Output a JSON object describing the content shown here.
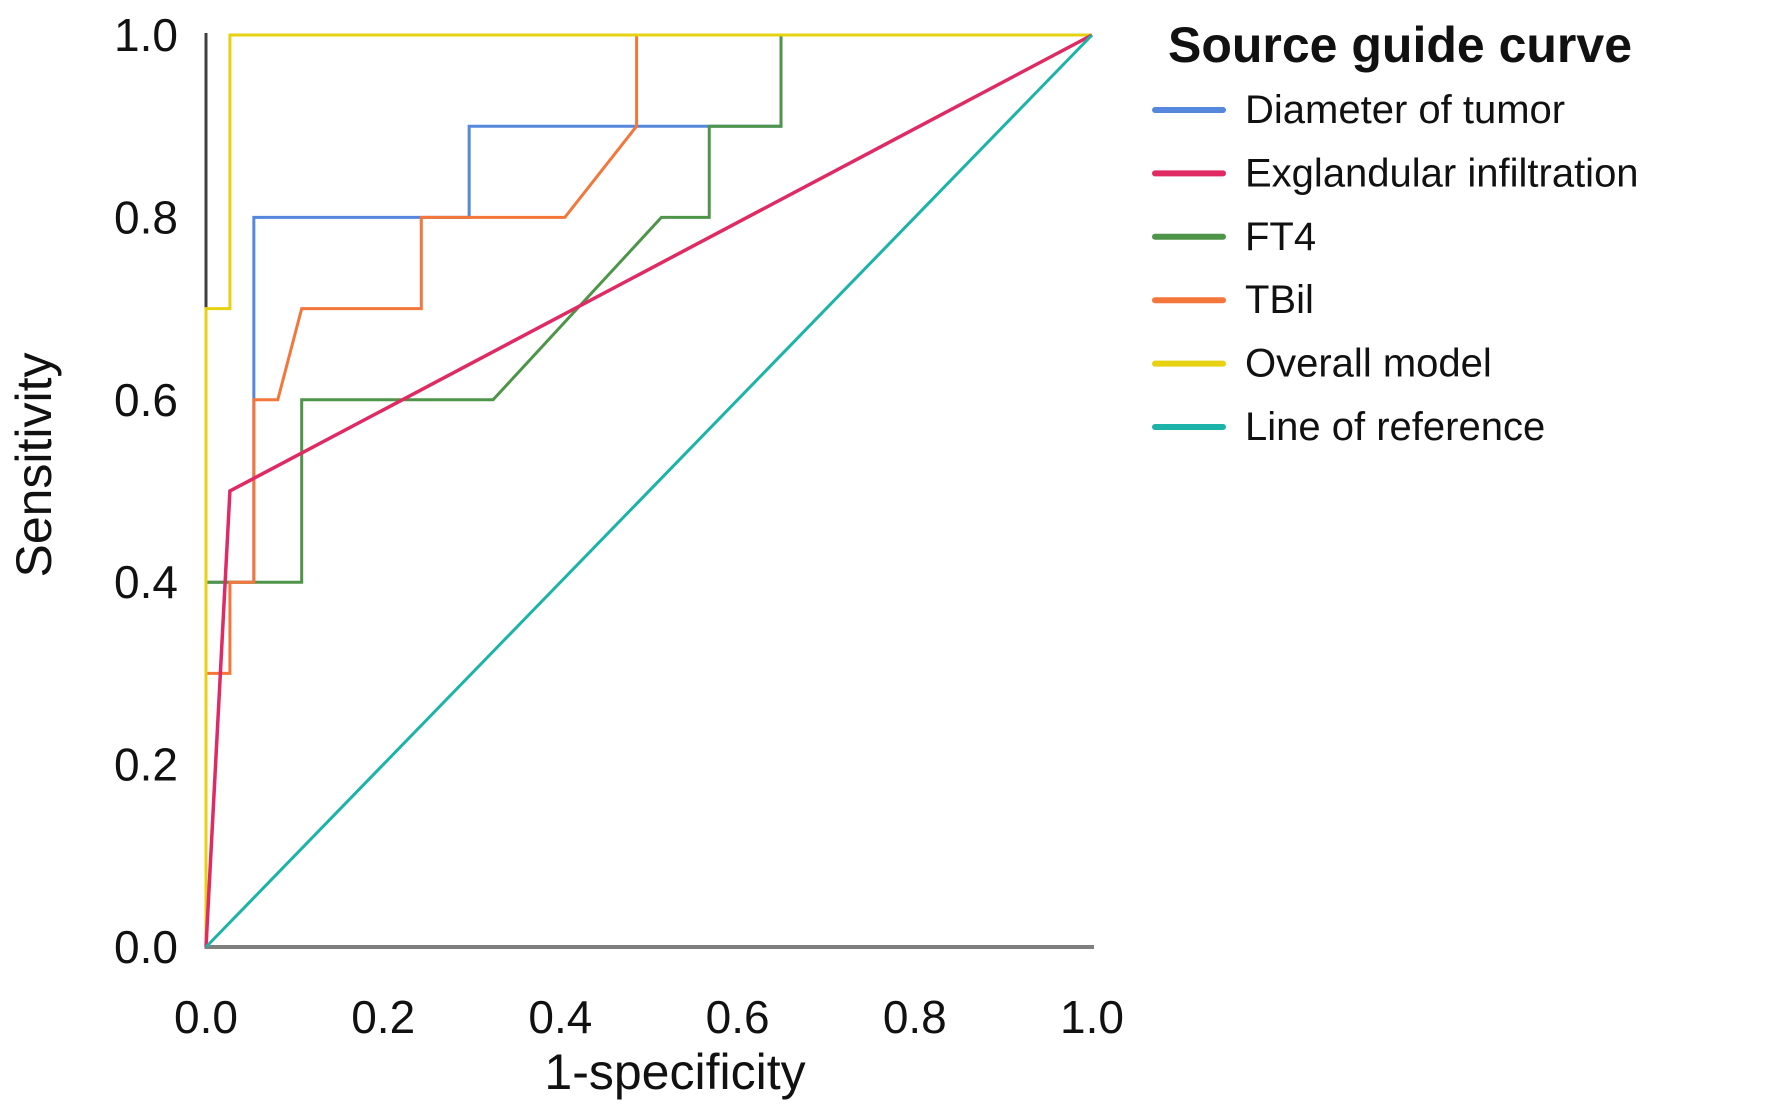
{
  "chart_data": {
    "type": "line",
    "subtype": "roc-curves",
    "legend_title": "Source guide curve",
    "xlabel": "1-specificity",
    "ylabel": "Sensitivity",
    "xlim": [
      0,
      1
    ],
    "ylim": [
      0,
      1
    ],
    "grid": false,
    "legend_position": "right",
    "x_ticks": [
      {
        "value": 0.0,
        "label": "0.0"
      },
      {
        "value": 0.2,
        "label": "0.2"
      },
      {
        "value": 0.4,
        "label": "0.4"
      },
      {
        "value": 0.6,
        "label": "0.6"
      },
      {
        "value": 0.8,
        "label": "0.8"
      },
      {
        "value": 1.0,
        "label": "1.0"
      }
    ],
    "y_ticks": [
      {
        "value": 0.0,
        "label": "0.0"
      },
      {
        "value": 0.2,
        "label": "0.2"
      },
      {
        "value": 0.4,
        "label": "0.4"
      },
      {
        "value": 0.6,
        "label": "0.6"
      },
      {
        "value": 0.8,
        "label": "0.8"
      },
      {
        "value": 1.0,
        "label": "1.0"
      }
    ],
    "series": [
      {
        "key": "diameter_of_tumor",
        "label": "Diameter of tumor",
        "color": "#5587dd",
        "points": [
          [
            0,
            0
          ],
          [
            0,
            0.4
          ],
          [
            0.054,
            0.4
          ],
          [
            0.054,
            0.8
          ],
          [
            0.297,
            0.8
          ],
          [
            0.297,
            0.9
          ],
          [
            0.649,
            0.9
          ],
          [
            0.649,
            1
          ],
          [
            1,
            1
          ]
        ]
      },
      {
        "key": "exglandular_infiltration",
        "label": "Exglandular infiltration",
        "color": "#e02a64",
        "points": [
          [
            0,
            0
          ],
          [
            0.027,
            0.5
          ],
          [
            1,
            1
          ]
        ]
      },
      {
        "key": "ft4",
        "label": "FT4",
        "color": "#4f9549",
        "points": [
          [
            0,
            0
          ],
          [
            0,
            0.4
          ],
          [
            0.108,
            0.4
          ],
          [
            0.108,
            0.6
          ],
          [
            0.324,
            0.6
          ],
          [
            0.514,
            0.8
          ],
          [
            0.568,
            0.8
          ],
          [
            0.568,
            0.9
          ],
          [
            0.649,
            0.9
          ],
          [
            0.649,
            1
          ],
          [
            1,
            1
          ]
        ]
      },
      {
        "key": "tbil",
        "label": "TBil",
        "color": "#f4763b",
        "points": [
          [
            0,
            0
          ],
          [
            0,
            0.3
          ],
          [
            0.027,
            0.3
          ],
          [
            0.027,
            0.4
          ],
          [
            0.054,
            0.4
          ],
          [
            0.054,
            0.6
          ],
          [
            0.081,
            0.6
          ],
          [
            0.108,
            0.7
          ],
          [
            0.243,
            0.7
          ],
          [
            0.243,
            0.8
          ],
          [
            0.405,
            0.8
          ],
          [
            0.486,
            0.9
          ],
          [
            0.486,
            1
          ],
          [
            1,
            1
          ]
        ]
      },
      {
        "key": "overall_model",
        "label": "Overall model",
        "color": "#e7d211",
        "points": [
          [
            0,
            0
          ],
          [
            0,
            0.7
          ],
          [
            0.027,
            0.7
          ],
          [
            0.027,
            1
          ],
          [
            1,
            1
          ]
        ]
      },
      {
        "key": "line_of_reference",
        "label": "Line of reference",
        "color": "#1cb3a8",
        "points": [
          [
            0,
            0
          ],
          [
            1,
            1
          ]
        ]
      }
    ],
    "draw_order": [
      "diameter_of_tumor",
      "ft4",
      "tbil",
      "overall_model",
      "exglandular_infiltration",
      "line_of_reference"
    ]
  }
}
